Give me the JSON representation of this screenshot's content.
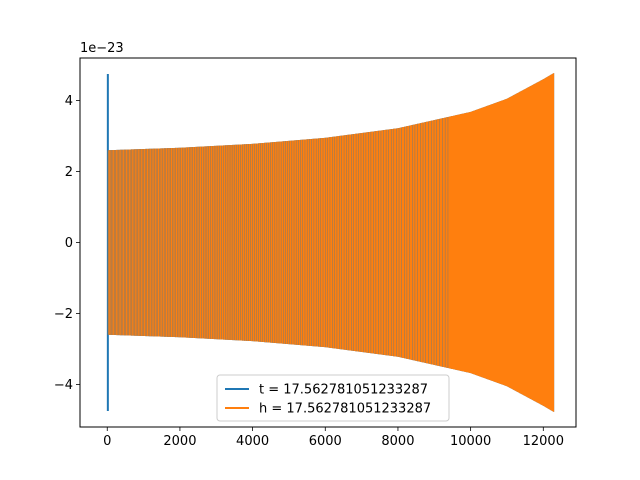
{
  "chart_data": {
    "type": "line",
    "title": "",
    "xlabel": "",
    "ylabel": "",
    "y_offset_text": "1e−23",
    "xlim": [
      -750,
      12900
    ],
    "ylim": [
      -5.2,
      5.2
    ],
    "x_ticks": [
      0,
      2000,
      4000,
      6000,
      8000,
      10000,
      12000
    ],
    "x_tick_labels": [
      "0",
      "2000",
      "4000",
      "6000",
      "8000",
      "10000",
      "12000"
    ],
    "y_ticks": [
      -4,
      -2,
      0,
      2,
      4
    ],
    "y_tick_labels": [
      "−4",
      "−2",
      "0",
      "2",
      "4"
    ],
    "grid": false,
    "legend_position": "lower center",
    "series": [
      {
        "name": "t = 17.562781051233287",
        "color": "#1f77b4",
        "x_range": [
          0,
          12300
        ],
        "spike_x_range": [
          0,
          40
        ],
        "spike_amplitude": 4.75,
        "envelope": [
          {
            "x": 0,
            "amplitude": 2.6
          },
          {
            "x": 2000,
            "amplitude": 2.67
          },
          {
            "x": 4000,
            "amplitude": 2.78
          },
          {
            "x": 6000,
            "amplitude": 2.95
          },
          {
            "x": 8000,
            "amplitude": 3.22
          },
          {
            "x": 10000,
            "amplitude": 3.68
          },
          {
            "x": 11000,
            "amplitude": 4.05
          },
          {
            "x": 12000,
            "amplitude": 4.6
          },
          {
            "x": 12300,
            "amplitude": 4.78
          }
        ]
      },
      {
        "name": "h = 17.562781051233287",
        "color": "#ff7f0e",
        "x_range": [
          0,
          12300
        ],
        "envelope": [
          {
            "x": 0,
            "amplitude": 2.6
          },
          {
            "x": 2000,
            "amplitude": 2.67
          },
          {
            "x": 4000,
            "amplitude": 2.78
          },
          {
            "x": 6000,
            "amplitude": 2.95
          },
          {
            "x": 8000,
            "amplitude": 3.22
          },
          {
            "x": 10000,
            "amplitude": 3.68
          },
          {
            "x": 11000,
            "amplitude": 4.05
          },
          {
            "x": 12000,
            "amplitude": 4.6
          },
          {
            "x": 12300,
            "amplitude": 4.78
          }
        ]
      }
    ]
  }
}
